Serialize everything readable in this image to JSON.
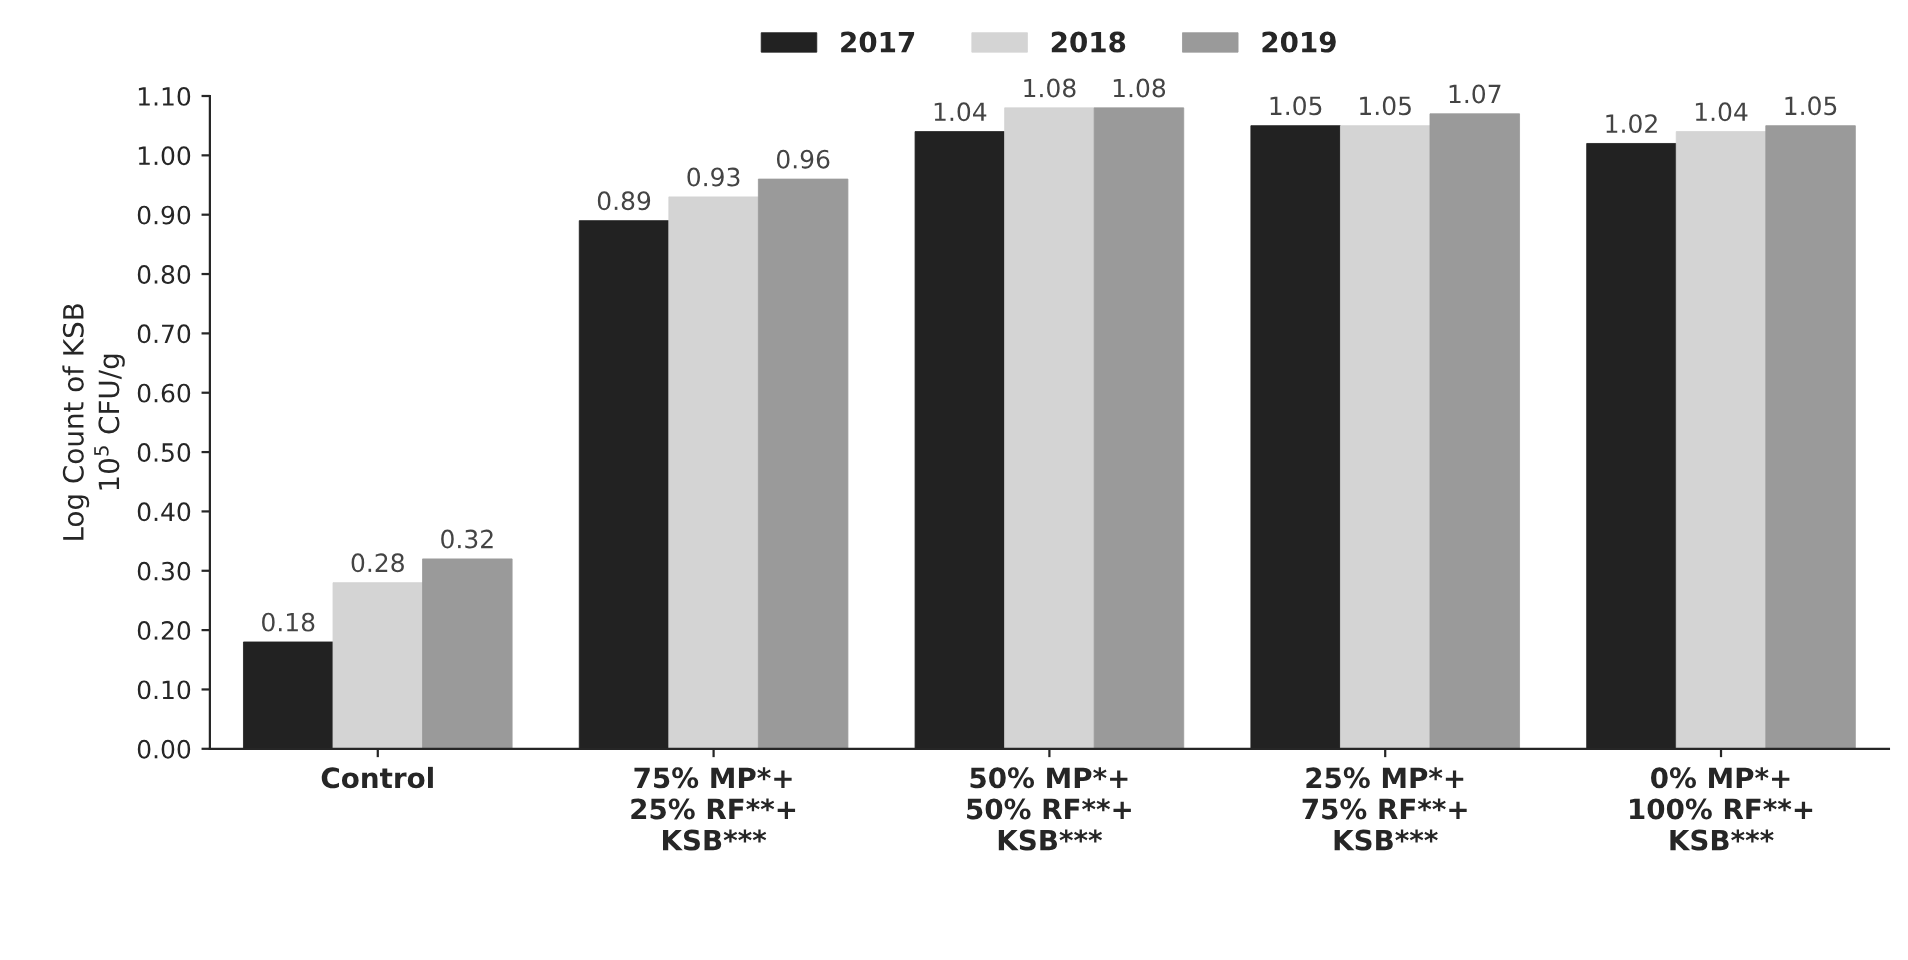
{
  "chart_data": {
    "type": "bar",
    "ylabel": "Log Count of KSB\n10$^{5}$ CFU/g",
    "categories": [
      "Control",
      "75% MP*+\n25% RF**+\nKSB***",
      "50% MP*+\n50% RF**+\nKSB***",
      "25% MP*+\n75% RF**+\nKSB***",
      "0% MP*+\n100% RF**+\nKSB***"
    ],
    "series": [
      {
        "name": "2017",
        "color": "#222222",
        "values": [
          0.18,
          0.89,
          1.04,
          1.05,
          1.02
        ]
      },
      {
        "name": "2018",
        "color": "#d4d4d4",
        "values": [
          0.28,
          0.93,
          1.08,
          1.05,
          1.04
        ]
      },
      {
        "name": "2019",
        "color": "#9a9a9a",
        "values": [
          0.32,
          0.96,
          1.08,
          1.07,
          1.05
        ]
      }
    ],
    "ylim": [
      0,
      1.1
    ],
    "yticks": [
      {
        "value": 0,
        "label": "0.00"
      },
      {
        "value": 0.1,
        "label": "0.10"
      },
      {
        "value": 0.2,
        "label": "0.20"
      },
      {
        "value": 0.3,
        "label": "0.30"
      },
      {
        "value": 0.4,
        "label": "0.40"
      },
      {
        "value": 0.5,
        "label": "0.50"
      },
      {
        "value": 0.6,
        "label": "0.60"
      },
      {
        "value": 0.7,
        "label": "0.70"
      },
      {
        "value": 0.8,
        "label": "0.80"
      },
      {
        "value": 0.9,
        "label": "0.90"
      },
      {
        "value": 1.0,
        "label": "1.00"
      },
      {
        "value": 1.1,
        "label": "1.10"
      }
    ],
    "data_labels": true,
    "legend": "top",
    "grid": false
  }
}
